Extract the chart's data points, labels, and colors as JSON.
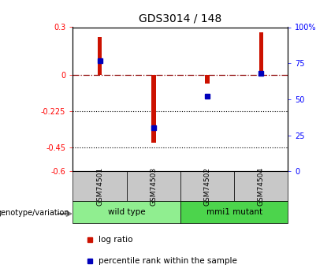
{
  "title": "GDS3014 / 148",
  "samples": [
    "GSM74501",
    "GSM74503",
    "GSM74502",
    "GSM74504"
  ],
  "log_ratios": [
    0.24,
    -0.42,
    -0.05,
    0.27
  ],
  "percentile_ranks": [
    77,
    30,
    52,
    68
  ],
  "groups": [
    "wild type",
    "wild type",
    "mmi1 mutant",
    "mmi1 mutant"
  ],
  "group_colors": {
    "wild type": "#90EE90",
    "mmi1 mutant": "#4CD44C"
  },
  "sample_box_color": "#C8C8C8",
  "bar_color": "#CC1100",
  "dot_color": "#0000BB",
  "ylim_left": [
    -0.6,
    0.3
  ],
  "ylim_right": [
    0,
    100
  ],
  "yticks_left": [
    0.3,
    0.0,
    -0.225,
    -0.45,
    -0.6
  ],
  "ytick_labels_left": [
    "0.3",
    "0",
    "-0.225",
    "-0.45",
    "-0.6"
  ],
  "yticks_right": [
    100,
    75,
    50,
    25,
    0
  ],
  "ytick_labels_right": [
    "100%",
    "75",
    "50",
    "25",
    "0"
  ],
  "dotted_lines": [
    -0.225,
    -0.45
  ],
  "legend_log_ratio": "log ratio",
  "legend_percentile": "percentile rank within the sample",
  "genotype_label": "genotype/variation",
  "bar_width": 0.08
}
